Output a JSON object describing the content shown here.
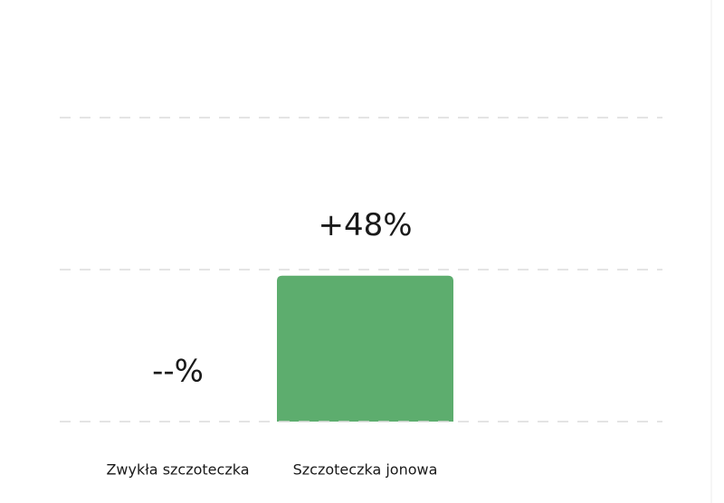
{
  "chart_data": {
    "type": "bar",
    "categories": [
      "Zwykła szczoteczka",
      "Szczoteczka jonowa"
    ],
    "values": [
      null,
      48
    ],
    "value_labels": [
      "--%",
      "+48%"
    ],
    "color": "#5dad6e",
    "ylim": [
      0,
      100
    ],
    "yticks": [
      0,
      50,
      100
    ],
    "grid": true
  }
}
